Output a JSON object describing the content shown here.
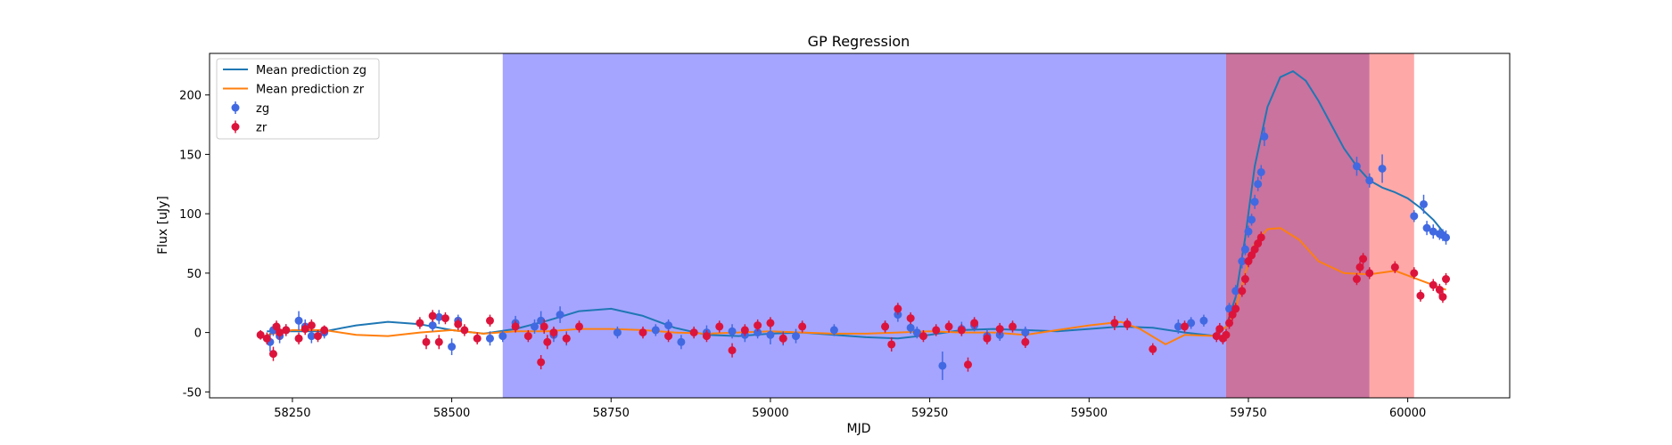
{
  "chart_data": {
    "type": "scatter",
    "title": "GP Regression",
    "xlabel": "MJD",
    "ylabel": "Flux [uJy]",
    "xlim": [
      58120,
      60160
    ],
    "ylim": [
      -55,
      235
    ],
    "xticks": [
      58250,
      58500,
      58750,
      59000,
      59250,
      59500,
      59750,
      60000
    ],
    "yticks": [
      -50,
      0,
      50,
      100,
      150,
      200
    ],
    "grid": false,
    "legend_position": "top-left",
    "colors": {
      "zg_line": "#1f77b4",
      "zr_line": "#ff7f0e",
      "zg_points": "#4169e1",
      "zr_points": "#dc143c",
      "span_blue": "#7b7bff",
      "span_purple": "#b03070",
      "span_red": "#ff7f7f"
    },
    "shaded_regions": [
      {
        "x0": 58580,
        "x1": 59715,
        "color": "#7b7bff"
      },
      {
        "x0": 59715,
        "x1": 59940,
        "color": "#b03070"
      },
      {
        "x0": 59940,
        "x1": 60010,
        "color": "#ff7f7f"
      }
    ],
    "series": [
      {
        "name": "Mean prediction zg",
        "kind": "line",
        "color": "#1f77b4",
        "x": [
          58210,
          58300,
          58350,
          58400,
          58450,
          58500,
          58550,
          58600,
          58650,
          58700,
          58750,
          58800,
          58850,
          58900,
          58950,
          59000,
          59050,
          59100,
          59150,
          59200,
          59250,
          59300,
          59350,
          59400,
          59450,
          59500,
          59550,
          59600,
          59650,
          59700,
          59715,
          59730,
          59745,
          59760,
          59780,
          59800,
          59820,
          59840,
          59860,
          59880,
          59900,
          59920,
          59940,
          59960,
          59980,
          60000,
          60020,
          60040,
          60060
        ],
        "y": [
          1,
          1,
          6,
          9,
          7,
          2,
          -1,
          3,
          10,
          18,
          20,
          14,
          4,
          -2,
          -3,
          -1,
          0,
          -2,
          -4,
          -5,
          -2,
          2,
          3,
          2,
          1,
          3,
          5,
          4,
          0,
          -3,
          5,
          30,
          80,
          140,
          190,
          215,
          220,
          212,
          195,
          175,
          155,
          140,
          128,
          122,
          118,
          113,
          105,
          95,
          82
        ]
      },
      {
        "name": "Mean prediction zr",
        "kind": "line",
        "color": "#ff7f0e",
        "x": [
          58210,
          58250,
          58300,
          58350,
          58400,
          58450,
          58500,
          58550,
          58600,
          58650,
          58700,
          58750,
          58800,
          58850,
          58900,
          58950,
          59000,
          59050,
          59100,
          59150,
          59200,
          59250,
          59300,
          59350,
          59400,
          59450,
          59500,
          59550,
          59580,
          59620,
          59650,
          59700,
          59715,
          59730,
          59745,
          59760,
          59780,
          59800,
          59830,
          59860,
          59900,
          59940,
          59980,
          60020,
          60060
        ],
        "y": [
          -2,
          2,
          2,
          -2,
          -3,
          0,
          2,
          -1,
          1,
          1,
          3,
          3,
          2,
          0,
          -1,
          0,
          1,
          0,
          -1,
          -1,
          0,
          1,
          0,
          0,
          -2,
          2,
          6,
          9,
          3,
          -10,
          -2,
          -3,
          5,
          20,
          50,
          75,
          87,
          88,
          78,
          60,
          50,
          49,
          52,
          44,
          36
        ]
      },
      {
        "name": "zg",
        "kind": "errorbar",
        "color": "#4169e1",
        "x": [
          58215,
          58220,
          58230,
          58240,
          58260,
          58270,
          58280,
          58300,
          58470,
          58480,
          58500,
          58510,
          58560,
          58580,
          58600,
          58630,
          58640,
          58660,
          58670,
          58680,
          58760,
          58820,
          58840,
          58860,
          58900,
          58940,
          58960,
          58980,
          59000,
          59020,
          59040,
          59100,
          59180,
          59200,
          59220,
          59230,
          59270,
          59300,
          59320,
          59340,
          59360,
          59400,
          59640,
          59660,
          59680,
          59700,
          59720,
          59730,
          59740,
          59745,
          59750,
          59755,
          59760,
          59765,
          59770,
          59775,
          59920,
          59940,
          59960,
          60010,
          60025,
          60030,
          60040,
          60050,
          60055,
          60060
        ],
        "y": [
          -8,
          2,
          -3,
          2,
          10,
          5,
          -3,
          0,
          6,
          13,
          -12,
          10,
          -5,
          -3,
          8,
          5,
          10,
          -2,
          15,
          -5,
          0,
          2,
          6,
          -8,
          0,
          1,
          -2,
          0,
          -2,
          -5,
          -3,
          2,
          5,
          15,
          4,
          0,
          -28,
          3,
          6,
          -3,
          -2,
          0,
          5,
          8,
          10,
          -3,
          20,
          35,
          60,
          70,
          85,
          95,
          110,
          125,
          135,
          165,
          140,
          128,
          138,
          98,
          108,
          88,
          85,
          83,
          82,
          80
        ],
        "yerr": [
          8,
          5,
          6,
          5,
          8,
          6,
          6,
          5,
          5,
          6,
          7,
          5,
          6,
          5,
          6,
          6,
          8,
          6,
          7,
          6,
          5,
          5,
          5,
          6,
          6,
          6,
          6,
          5,
          8,
          6,
          6,
          5,
          5,
          6,
          5,
          5,
          12,
          6,
          5,
          5,
          5,
          5,
          6,
          5,
          5,
          5,
          5,
          5,
          6,
          5,
          5,
          5,
          6,
          6,
          6,
          8,
          8,
          6,
          12,
          5,
          8,
          6,
          6,
          5,
          5,
          6
        ]
      },
      {
        "name": "zr",
        "kind": "errorbar",
        "color": "#dc143c",
        "x": [
          58200,
          58210,
          58220,
          58225,
          58230,
          58240,
          58260,
          58270,
          58280,
          58290,
          58300,
          58450,
          58460,
          58470,
          58480,
          58490,
          58510,
          58520,
          58540,
          58560,
          58600,
          58620,
          58640,
          58645,
          58650,
          58660,
          58680,
          58700,
          58800,
          58840,
          58880,
          58900,
          58920,
          58940,
          58960,
          58980,
          59000,
          59020,
          59050,
          59180,
          59190,
          59200,
          59220,
          59240,
          59260,
          59280,
          59300,
          59310,
          59320,
          59340,
          59360,
          59380,
          59400,
          59540,
          59560,
          59600,
          59650,
          59700,
          59705,
          59710,
          59715,
          59720,
          59725,
          59730,
          59740,
          59745,
          59750,
          59755,
          59760,
          59765,
          59770,
          59920,
          59925,
          59930,
          59940,
          59980,
          60010,
          60020,
          60040,
          60050,
          60055,
          60060
        ],
        "y": [
          -2,
          -5,
          -18,
          5,
          0,
          2,
          -5,
          3,
          6,
          -3,
          2,
          8,
          -8,
          14,
          -8,
          12,
          7,
          2,
          -5,
          10,
          5,
          -3,
          -25,
          5,
          -8,
          0,
          -5,
          5,
          0,
          -3,
          0,
          -3,
          5,
          -15,
          2,
          6,
          8,
          -5,
          5,
          5,
          -10,
          20,
          12,
          -3,
          2,
          5,
          2,
          -27,
          8,
          -5,
          3,
          5,
          -8,
          8,
          7,
          -14,
          5,
          -3,
          3,
          -5,
          -2,
          8,
          15,
          20,
          35,
          45,
          60,
          65,
          70,
          75,
          80,
          45,
          55,
          62,
          50,
          55,
          50,
          31,
          40,
          36,
          30,
          45
        ],
        "yerr": [
          4,
          5,
          6,
          5,
          6,
          5,
          5,
          5,
          5,
          5,
          4,
          5,
          6,
          5,
          6,
          5,
          5,
          5,
          5,
          5,
          5,
          5,
          6,
          6,
          6,
          5,
          5,
          5,
          5,
          5,
          5,
          5,
          5,
          6,
          5,
          5,
          5,
          5,
          5,
          5,
          6,
          5,
          5,
          5,
          5,
          5,
          5,
          6,
          5,
          5,
          5,
          5,
          5,
          6,
          5,
          5,
          5,
          5,
          5,
          5,
          5,
          5,
          5,
          5,
          5,
          5,
          5,
          5,
          5,
          5,
          5,
          5,
          5,
          5,
          5,
          5,
          5,
          5,
          5,
          5,
          5,
          5
        ]
      }
    ]
  }
}
